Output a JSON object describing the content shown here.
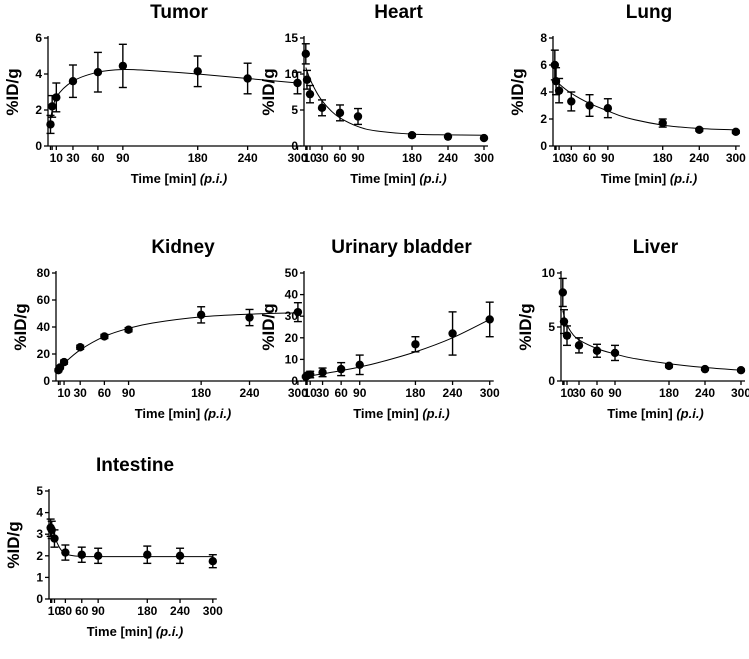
{
  "figure": {
    "xlabel": "Time [min] ",
    "xlabel_italic": "(p.i.)",
    "ylabel": "%ID/g"
  },
  "chart_data": [
    {
      "type": "scatter",
      "title": "Tumor",
      "xlabel": "Time [min] (p.i.)",
      "ylabel": "%ID/g",
      "xlim": [
        0,
        315
      ],
      "ylim": [
        0,
        6
      ],
      "xticks": [
        10,
        30,
        60,
        90,
        180,
        240,
        300
      ],
      "yticks": [
        0,
        2,
        4,
        6
      ],
      "x": [
        3,
        5,
        10,
        30,
        60,
        90,
        180,
        240,
        300
      ],
      "y": [
        1.2,
        2.2,
        2.7,
        3.6,
        4.1,
        4.45,
        4.15,
        3.75,
        3.5
      ],
      "err": [
        0.5,
        0.6,
        0.8,
        0.9,
        1.1,
        1.2,
        0.85,
        0.85,
        0.6
      ],
      "fit": {
        "x": [
          3,
          10,
          30,
          60,
          90,
          120,
          180,
          240,
          300
        ],
        "y": [
          1.5,
          2.7,
          3.6,
          4.1,
          4.25,
          4.2,
          4.0,
          3.75,
          3.5
        ]
      }
    },
    {
      "type": "scatter",
      "title": "Heart",
      "xlabel": "Time [min] (p.i.)",
      "ylabel": "%ID/g",
      "xlim": [
        0,
        315
      ],
      "ylim": [
        0,
        15
      ],
      "xticks": [
        10,
        30,
        60,
        90,
        180,
        240,
        300
      ],
      "yticks": [
        0,
        5,
        10,
        15
      ],
      "x": [
        3,
        5,
        10,
        30,
        60,
        90,
        180,
        240,
        300
      ],
      "y": [
        12.8,
        9.2,
        7.2,
        5.3,
        4.6,
        4.1,
        1.5,
        1.3,
        1.1
      ],
      "err": [
        1.4,
        1.3,
        1.2,
        1.1,
        1.1,
        1.1,
        0.2,
        0.1,
        0.1
      ],
      "fit": {
        "x": [
          3,
          10,
          20,
          30,
          45,
          60,
          90,
          120,
          180,
          240,
          300
        ],
        "y": [
          10.9,
          9.3,
          7.6,
          6.3,
          4.9,
          3.9,
          2.7,
          2.1,
          1.65,
          1.55,
          1.5
        ]
      }
    },
    {
      "type": "scatter",
      "title": "Lung",
      "xlabel": "Time [min] (p.i.)",
      "ylabel": "%ID/g",
      "xlim": [
        0,
        315
      ],
      "ylim": [
        0,
        8
      ],
      "xticks": [
        10,
        30,
        60,
        90,
        180,
        240,
        300
      ],
      "yticks": [
        0,
        2,
        4,
        6,
        8
      ],
      "x": [
        3,
        5,
        10,
        30,
        60,
        90,
        180,
        240,
        300
      ],
      "y": [
        6.0,
        4.8,
        4.1,
        3.3,
        3.0,
        2.8,
        1.7,
        1.2,
        1.05
      ],
      "err": [
        1.1,
        1.0,
        0.9,
        0.7,
        0.8,
        0.7,
        0.3,
        0.1,
        0.1
      ],
      "fit": {
        "x": [
          3,
          10,
          30,
          60,
          90,
          120,
          180,
          240,
          300
        ],
        "y": [
          5.0,
          4.6,
          3.9,
          3.15,
          2.6,
          2.1,
          1.55,
          1.3,
          1.2
        ]
      }
    },
    {
      "type": "scatter",
      "title": "Kidney",
      "xlabel": "Time [min] (p.i.)",
      "ylabel": "%ID/g",
      "xlim": [
        0,
        315
      ],
      "ylim": [
        0,
        80
      ],
      "xticks": [
        10,
        30,
        60,
        90,
        180,
        240,
        300
      ],
      "yticks": [
        0,
        20,
        40,
        60,
        80
      ],
      "x": [
        3,
        5,
        10,
        30,
        60,
        90,
        180,
        240,
        300
      ],
      "y": [
        8,
        10,
        14,
        25,
        33,
        38,
        49,
        47,
        51
      ],
      "err": [
        1,
        1,
        1.5,
        1.5,
        1.5,
        1.5,
        6,
        6,
        7
      ],
      "fit": {
        "x": [
          3,
          10,
          30,
          60,
          90,
          120,
          180,
          240,
          300
        ],
        "y": [
          8,
          13,
          23,
          33,
          39,
          43,
          47.5,
          49.5,
          50.5
        ]
      }
    },
    {
      "type": "scatter",
      "title": "Urinary bladder",
      "xlabel": "Time [min] (p.i.)",
      "ylabel": "%ID/g",
      "xlim": [
        0,
        315
      ],
      "ylim": [
        0,
        50
      ],
      "xticks": [
        10,
        30,
        60,
        90,
        180,
        240,
        300
      ],
      "yticks": [
        0,
        10,
        20,
        30,
        40,
        50
      ],
      "x": [
        3,
        5,
        10,
        30,
        60,
        90,
        180,
        240,
        300
      ],
      "y": [
        2,
        2.5,
        3,
        4,
        5.5,
        7.5,
        17,
        22,
        28.5
      ],
      "err": [
        0.5,
        0.5,
        1.5,
        2,
        3,
        4.5,
        3.5,
        10,
        8
      ],
      "fit": {
        "x": [
          3,
          30,
          60,
          90,
          120,
          180,
          240,
          300
        ],
        "y": [
          2,
          3.3,
          4.8,
          6.5,
          8.5,
          13.5,
          20,
          28.5
        ]
      }
    },
    {
      "type": "scatter",
      "title": "Liver",
      "xlabel": "Time [min] (p.i.)",
      "ylabel": "%ID/g",
      "xlim": [
        0,
        315
      ],
      "ylim": [
        0,
        10
      ],
      "xticks": [
        10,
        30,
        60,
        90,
        180,
        240,
        300
      ],
      "yticks": [
        0,
        5,
        10
      ],
      "x": [
        3,
        5,
        10,
        30,
        60,
        90,
        180,
        240,
        300
      ],
      "y": [
        8.2,
        5.5,
        4.2,
        3.3,
        2.8,
        2.6,
        1.4,
        1.1,
        1.0
      ],
      "err": [
        1.3,
        1.1,
        0.9,
        0.7,
        0.6,
        0.7,
        0.15,
        0.1,
        0.1
      ],
      "fit": {
        "x": [
          3,
          10,
          20,
          30,
          60,
          90,
          120,
          180,
          240,
          300
        ],
        "y": [
          6.5,
          5.2,
          4.3,
          3.8,
          3.0,
          2.5,
          2.1,
          1.6,
          1.25,
          1.0
        ]
      }
    },
    {
      "type": "scatter",
      "title": "Intestine",
      "xlabel": "Time [min] (p.i.)",
      "ylabel": "%ID/g",
      "xlim": [
        0,
        315
      ],
      "ylim": [
        0,
        5
      ],
      "xticks": [
        10,
        30,
        60,
        90,
        180,
        240,
        300
      ],
      "yticks": [
        0,
        1,
        2,
        3,
        4,
        5
      ],
      "x": [
        3,
        5,
        10,
        30,
        60,
        90,
        180,
        240,
        300
      ],
      "y": [
        3.3,
        3.2,
        2.8,
        2.15,
        2.05,
        2.0,
        2.05,
        2.0,
        1.75
      ],
      "err": [
        0.4,
        0.4,
        0.4,
        0.35,
        0.35,
        0.35,
        0.4,
        0.35,
        0.3
      ],
      "fit": {
        "x": [
          3,
          10,
          20,
          30,
          45,
          60,
          90,
          180,
          300
        ],
        "y": [
          3.5,
          2.9,
          2.35,
          2.1,
          2.0,
          1.97,
          1.96,
          1.96,
          1.96
        ]
      }
    }
  ]
}
